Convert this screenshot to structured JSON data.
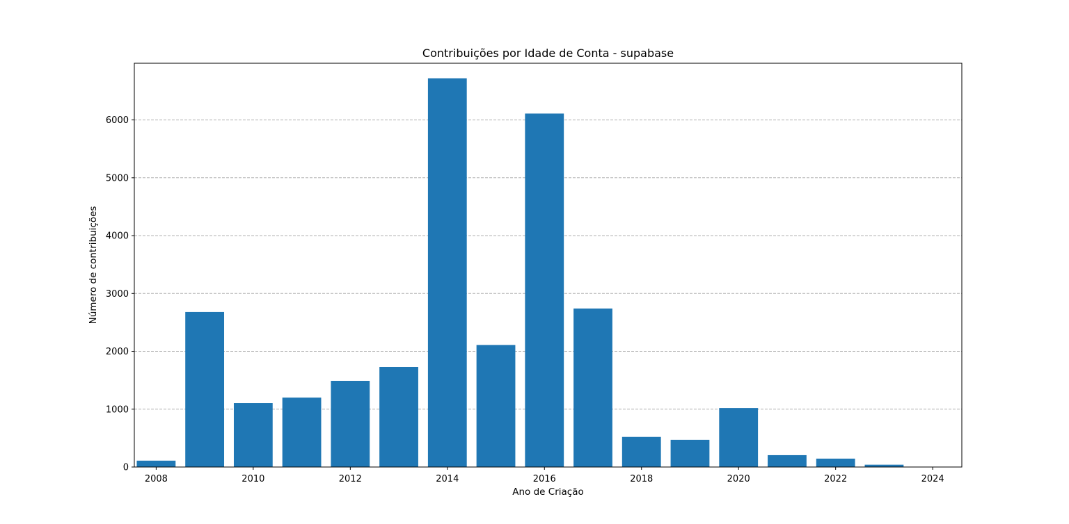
{
  "chart_data": {
    "type": "bar",
    "title": "Contribuições por Idade de Conta - supabase",
    "xlabel": "Ano de Criação",
    "ylabel": "Número de contribuições",
    "x": [
      2008,
      2009,
      2010,
      2011,
      2012,
      2013,
      2014,
      2015,
      2016,
      2017,
      2018,
      2019,
      2020,
      2021,
      2022,
      2023,
      2024
    ],
    "values": [
      110,
      2680,
      1105,
      1200,
      1490,
      1730,
      6720,
      2110,
      6110,
      2740,
      520,
      470,
      1020,
      205,
      145,
      40,
      5
    ],
    "xticks": [
      2008,
      2010,
      2012,
      2014,
      2016,
      2018,
      2020,
      2022,
      2024
    ],
    "yticks": [
      0,
      1000,
      2000,
      3000,
      4000,
      5000,
      6000
    ],
    "xlim": [
      2007.55,
      2024.6
    ],
    "ylim": [
      0,
      6980
    ],
    "grid": "y-dashed",
    "legend": "none",
    "colors": {
      "bar": "#1f77b4",
      "grid": "#b0b0b0",
      "axis": "#000000"
    }
  }
}
